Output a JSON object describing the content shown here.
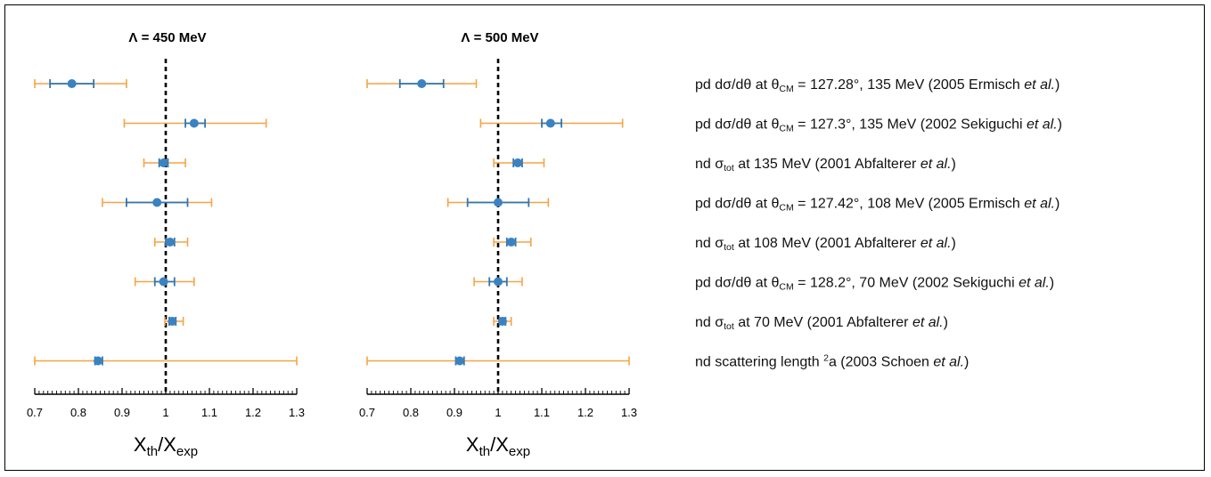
{
  "colors": {
    "outer": "#f5a445",
    "inner": "#2f77b3",
    "point": "#3b82c0",
    "axis": "#000000"
  },
  "chart_data": {
    "type": "scatter",
    "description_kind": "forest plot (ratio with two error-bar bands per row)",
    "xlim": [
      0.7,
      1.3
    ],
    "xticks": [
      "0.7",
      "0.8",
      "0.9",
      "1",
      "1.1",
      "1.2",
      "1.3"
    ],
    "reference_line": 1.0,
    "xlabel": {
      "main": "X",
      "sub1": "th",
      "sep": "/X",
      "sub2": "exp"
    },
    "rows": [
      {
        "label": {
          "a": "pd dσ/dθ at θ",
          "sub": "CM",
          "b": " = 127.28°, 135 MeV (2005 Ermisch ",
          "it": "et al.",
          "c": ")"
        }
      },
      {
        "label": {
          "a": "pd dσ/dθ at θ",
          "sub": "CM",
          "b": " = 127.3°, 135 MeV (2002 Sekiguchi ",
          "it": "et al.",
          "c": ")"
        }
      },
      {
        "label": {
          "a": "nd σ",
          "sub": "tot",
          "b": " at 135 MeV (2001 Abfalterer ",
          "it": "et al.",
          "c": ")"
        }
      },
      {
        "label": {
          "a": "pd dσ/dθ at θ",
          "sub": "CM",
          "b": " = 127.42°, 108 MeV (2005 Ermisch ",
          "it": "et al.",
          "c": ")"
        }
      },
      {
        "label": {
          "a": "nd σ",
          "sub": "tot",
          "b": " at 108 MeV (2001 Abfalterer ",
          "it": "et al.",
          "c": ")"
        }
      },
      {
        "label": {
          "a": "pd dσ/dθ at θ",
          "sub": "CM",
          "b": " = 128.2°, 70 MeV (2002 Sekiguchi ",
          "it": "et al.",
          "c": ")"
        }
      },
      {
        "label": {
          "a": "nd σ",
          "sub": "tot",
          "b": " at 70 MeV (2001 Abfalterer ",
          "it": "et al.",
          "c": ")"
        }
      },
      {
        "label": {
          "a": "nd scattering length ",
          "sup": "2",
          "b": "a (2003 Schoen ",
          "it": "et al.",
          "c": ")"
        }
      }
    ],
    "panels": [
      {
        "title": "Λ = 450 MeV",
        "points": [
          {
            "value": 0.785,
            "inner": [
              0.735,
              0.835
            ],
            "outer": [
              0.7,
              0.91
            ]
          },
          {
            "value": 1.065,
            "inner": [
              1.045,
              1.09
            ],
            "outer": [
              0.905,
              1.23
            ]
          },
          {
            "value": 0.995,
            "inner": [
              0.985,
              1.005
            ],
            "outer": [
              0.95,
              1.045
            ]
          },
          {
            "value": 0.98,
            "inner": [
              0.91,
              1.05
            ],
            "outer": [
              0.855,
              1.105
            ]
          },
          {
            "value": 1.01,
            "inner": [
              1.0,
              1.02
            ],
            "outer": [
              0.975,
              1.05
            ]
          },
          {
            "value": 0.995,
            "inner": [
              0.975,
              1.02
            ],
            "outer": [
              0.93,
              1.065
            ]
          },
          {
            "value": 1.015,
            "inner": [
              1.008,
              1.023
            ],
            "outer": [
              0.998,
              1.04
            ]
          },
          {
            "value": 0.845,
            "inner": [
              0.838,
              0.855
            ],
            "outer": [
              0.7,
              1.3
            ]
          }
        ]
      },
      {
        "title": "Λ = 500 MeV",
        "points": [
          {
            "value": 0.825,
            "inner": [
              0.775,
              0.875
            ],
            "outer": [
              0.7,
              0.95
            ]
          },
          {
            "value": 1.12,
            "inner": [
              1.1,
              1.145
            ],
            "outer": [
              0.96,
              1.285
            ]
          },
          {
            "value": 1.045,
            "inner": [
              1.035,
              1.055
            ],
            "outer": [
              0.99,
              1.105
            ]
          },
          {
            "value": 1.0,
            "inner": [
              0.93,
              1.07
            ],
            "outer": [
              0.885,
              1.115
            ]
          },
          {
            "value": 1.03,
            "inner": [
              1.02,
              1.04
            ],
            "outer": [
              0.99,
              1.075
            ]
          },
          {
            "value": 1.0,
            "inner": [
              0.98,
              1.02
            ],
            "outer": [
              0.945,
              1.055
            ]
          },
          {
            "value": 1.01,
            "inner": [
              1.003,
              1.017
            ],
            "outer": [
              0.99,
              1.03
            ]
          },
          {
            "value": 0.912,
            "inner": [
              0.903,
              0.922
            ],
            "outer": [
              0.7,
              1.3
            ]
          }
        ]
      }
    ]
  }
}
